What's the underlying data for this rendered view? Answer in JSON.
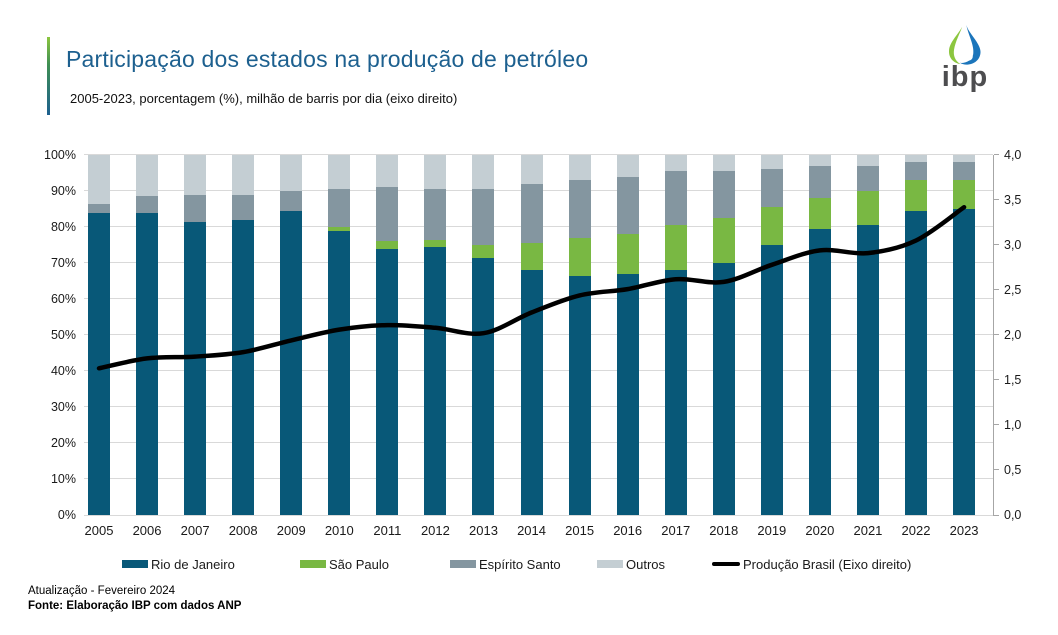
{
  "header": {
    "title": "Participação dos estados na produção de petróleo",
    "subtitle": "2005-2023, porcentagem (%), milhão de barris por dia (eixo direito)",
    "logo_text": "ibp",
    "title_color": "#1d608f",
    "accent_gradient": [
      "#8cc63f",
      "#1d608f"
    ]
  },
  "chart_data": {
    "type": "bar",
    "stacked": true,
    "categories": [
      "2005",
      "2006",
      "2007",
      "2008",
      "2009",
      "2010",
      "2011",
      "2012",
      "2013",
      "2014",
      "2015",
      "2016",
      "2017",
      "2018",
      "2019",
      "2020",
      "2021",
      "2022",
      "2023"
    ],
    "series": [
      {
        "name": "Rio de Janeiro",
        "color": "#085878",
        "values": [
          84,
          84,
          81.5,
          82,
          84.5,
          79,
          74,
          74.5,
          71.5,
          68,
          66.5,
          67,
          68,
          70,
          75,
          79.5,
          80.5,
          84.5,
          85
        ]
      },
      {
        "name": "São Paulo",
        "color": "#79b843",
        "values": [
          0,
          0,
          0,
          0,
          0,
          1,
          2,
          2,
          3.5,
          7.5,
          10.5,
          11,
          12.5,
          12.5,
          10.5,
          8.5,
          9.5,
          8.5,
          8
        ]
      },
      {
        "name": "Espírito Santo",
        "color": "#8496a0",
        "values": [
          2.5,
          4.5,
          7.5,
          7,
          5.5,
          10.5,
          15,
          14,
          15.5,
          16.5,
          16,
          16,
          15,
          13,
          10.5,
          9,
          7,
          5,
          5
        ]
      },
      {
        "name": "Outros",
        "color": "#c4ced3",
        "values": [
          13.5,
          11.5,
          11,
          11,
          10,
          9.5,
          9,
          9.5,
          9.5,
          8,
          7,
          6,
          4.5,
          4.5,
          4,
          3,
          3,
          2,
          2
        ]
      }
    ],
    "line_series": {
      "name": "Produção Brasil (Eixo direito)",
      "color": "#000000",
      "axis": "right",
      "values": [
        1.63,
        1.74,
        1.76,
        1.81,
        1.94,
        2.06,
        2.11,
        2.08,
        2.02,
        2.25,
        2.44,
        2.51,
        2.62,
        2.59,
        2.78,
        2.94,
        2.91,
        3.05,
        3.42
      ]
    },
    "left_axis": {
      "min": 0,
      "max": 100,
      "step": 10,
      "tick_labels": [
        "0%",
        "10%",
        "20%",
        "30%",
        "40%",
        "50%",
        "60%",
        "70%",
        "80%",
        "90%",
        "100%"
      ]
    },
    "right_axis": {
      "min": 0,
      "max": 4,
      "step": 0.5,
      "tick_labels": [
        "0,0",
        "0,5",
        "1,0",
        "1,5",
        "2,0",
        "2,5",
        "3,0",
        "3,5",
        "4,0"
      ]
    },
    "grid": true,
    "legend_position": "bottom"
  },
  "footer": {
    "updated": "Atualização - Fevereiro 2024",
    "source": "Fonte: Elaboração IBP com dados ANP"
  }
}
